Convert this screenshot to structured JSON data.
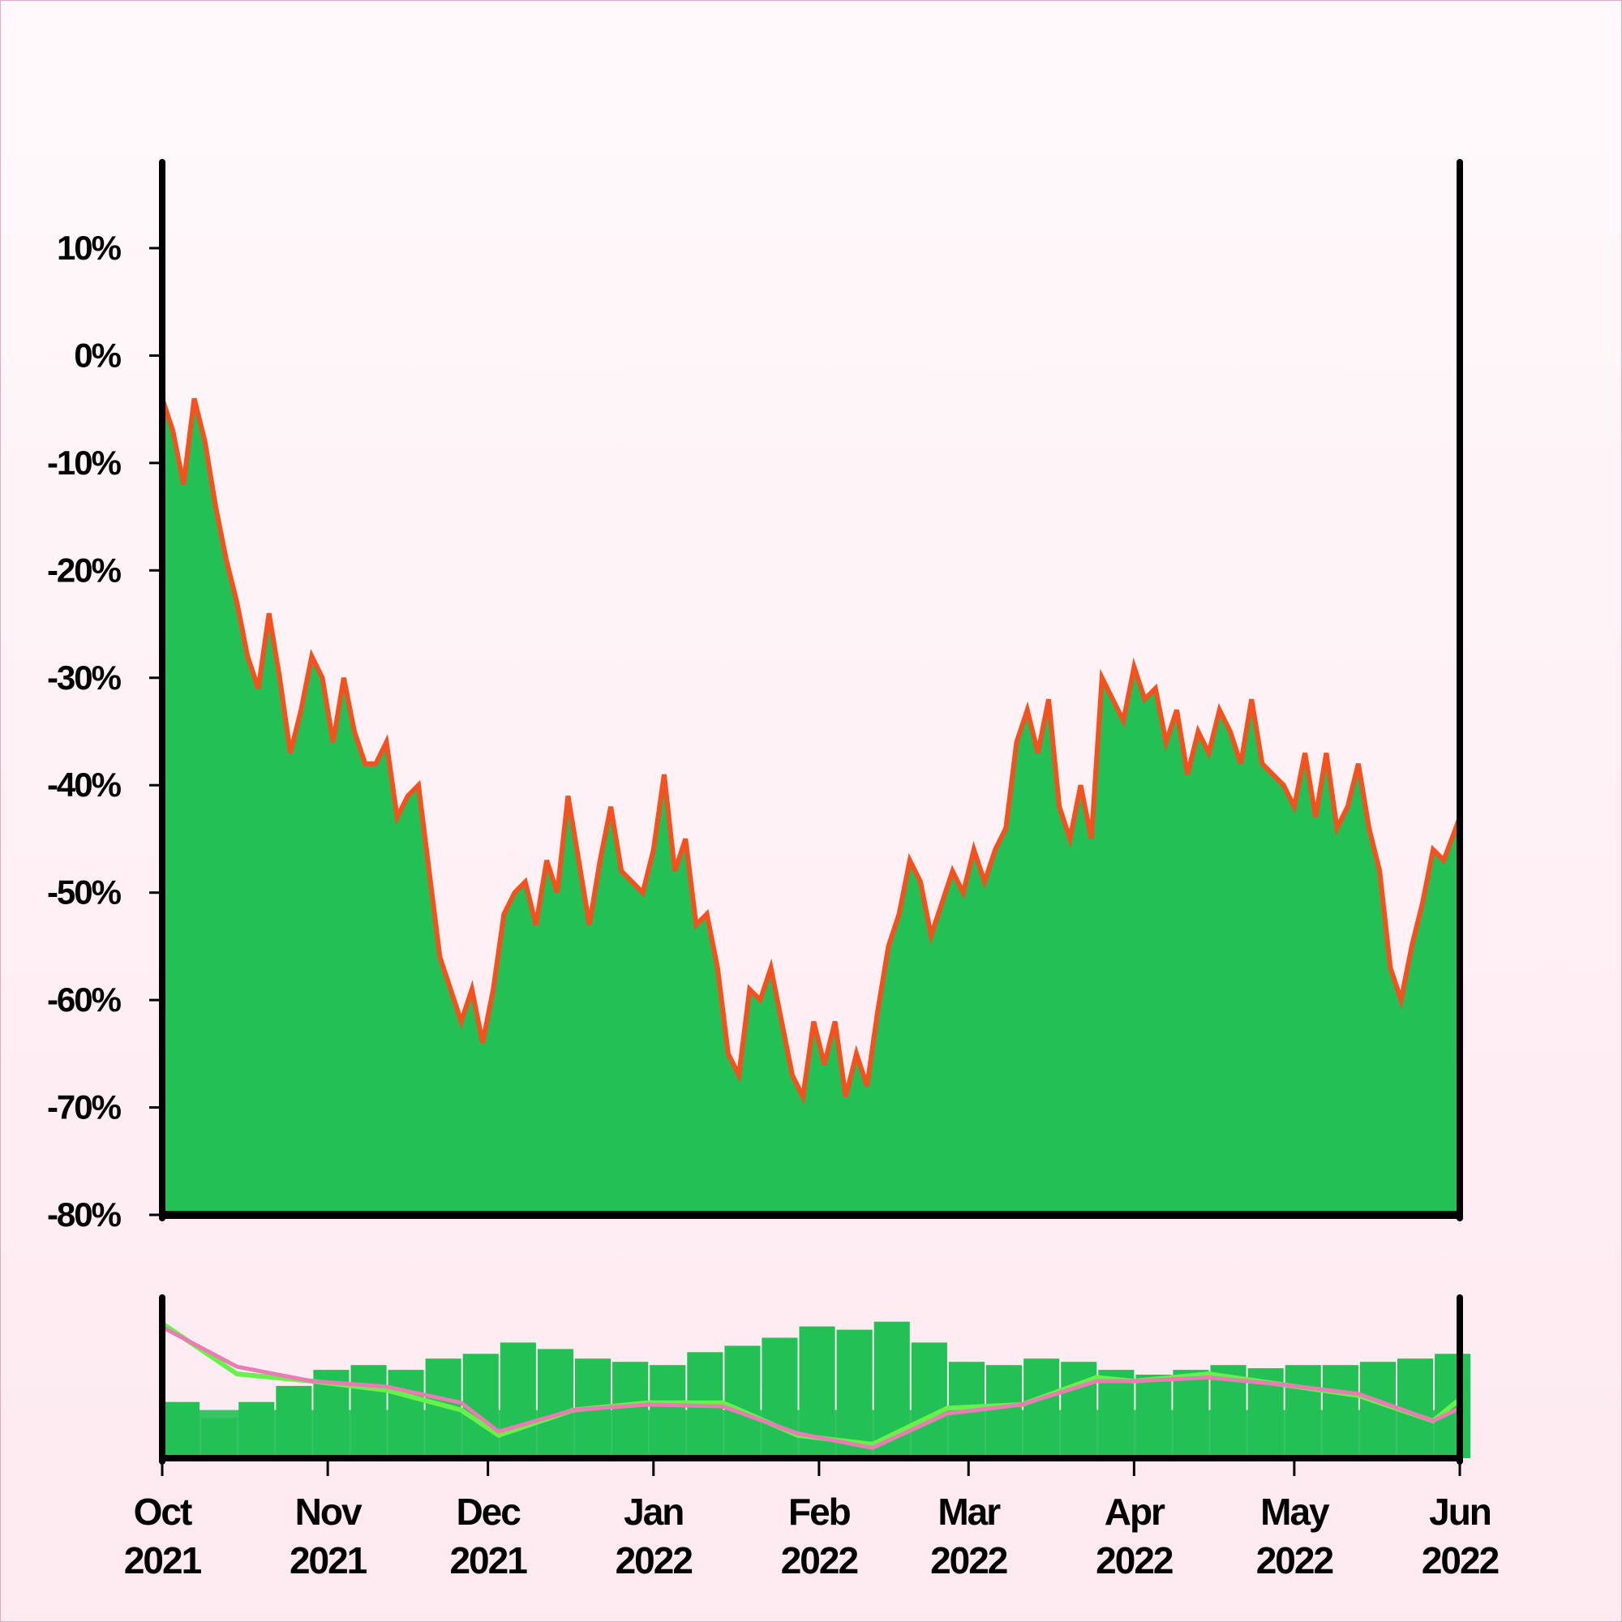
{
  "colors": {
    "area_fill": "#22c055",
    "price_line": "#f4511e",
    "volume_bar": "#22c055",
    "ma_fast": "#66f24a",
    "ma_slow": "#ea7bb5",
    "axis": "#000000"
  },
  "chart_data": [
    {
      "type": "area",
      "title": "",
      "xlabel": "",
      "ylabel": "",
      "ylim": [
        -80,
        18
      ],
      "y_ticks": [
        "10%",
        "0%",
        "-10%",
        "-20%",
        "-30%",
        "-40%",
        "-50%",
        "-60%",
        "-70%",
        "-80%"
      ],
      "y_tick_values": [
        10,
        0,
        -10,
        -20,
        -30,
        -40,
        -50,
        -60,
        -70,
        -80
      ],
      "x_range": [
        "2021-10-01",
        "2022-06-01"
      ],
      "series": [
        {
          "type": "area",
          "x": [
            "2021-10-01",
            "2021-10-03",
            "2021-10-05",
            "2021-10-07",
            "2021-10-09",
            "2021-10-11",
            "2021-10-13",
            "2021-10-15",
            "2021-10-17",
            "2021-10-19",
            "2021-10-21",
            "2021-10-23",
            "2021-10-25",
            "2021-10-27",
            "2021-10-29",
            "2021-10-31",
            "2021-11-02",
            "2021-11-04",
            "2021-11-06",
            "2021-11-08",
            "2021-11-10",
            "2021-11-12",
            "2021-11-14",
            "2021-11-16",
            "2021-11-18",
            "2021-11-20",
            "2021-11-22",
            "2021-11-24",
            "2021-11-26",
            "2021-11-28",
            "2021-11-30",
            "2021-12-02",
            "2021-12-04",
            "2021-12-06",
            "2021-12-08",
            "2021-12-10",
            "2021-12-12",
            "2021-12-14",
            "2021-12-16",
            "2021-12-18",
            "2021-12-20",
            "2021-12-22",
            "2021-12-24",
            "2021-12-26",
            "2021-12-28",
            "2021-12-30",
            "2022-01-01",
            "2022-01-03",
            "2022-01-05",
            "2022-01-07",
            "2022-01-09",
            "2022-01-11",
            "2022-01-13",
            "2022-01-15",
            "2022-01-17",
            "2022-01-19",
            "2022-01-21",
            "2022-01-23",
            "2022-01-25",
            "2022-01-27",
            "2022-01-29",
            "2022-01-31",
            "2022-02-02",
            "2022-02-04",
            "2022-02-06",
            "2022-02-08",
            "2022-02-10",
            "2022-02-12",
            "2022-02-14",
            "2022-02-16",
            "2022-02-18",
            "2022-02-20",
            "2022-02-22",
            "2022-02-24",
            "2022-02-26",
            "2022-02-28",
            "2022-03-02",
            "2022-03-04",
            "2022-03-06",
            "2022-03-08",
            "2022-03-10",
            "2022-03-12",
            "2022-03-14",
            "2022-03-16",
            "2022-03-18",
            "2022-03-20",
            "2022-03-22",
            "2022-03-24",
            "2022-03-26",
            "2022-03-28",
            "2022-03-30",
            "2022-04-01",
            "2022-04-03",
            "2022-04-05",
            "2022-04-07",
            "2022-04-09",
            "2022-04-11",
            "2022-04-13",
            "2022-04-15",
            "2022-04-17",
            "2022-04-19",
            "2022-04-21",
            "2022-04-23",
            "2022-04-25",
            "2022-04-27",
            "2022-04-29",
            "2022-05-01",
            "2022-05-03",
            "2022-05-05",
            "2022-05-07",
            "2022-05-09",
            "2022-05-11",
            "2022-05-13",
            "2022-05-15",
            "2022-05-17",
            "2022-05-19",
            "2022-05-21",
            "2022-05-23",
            "2022-05-25",
            "2022-05-27",
            "2022-05-29",
            "2022-06-01"
          ],
          "y": [
            -4,
            -7,
            -12,
            -4,
            -8,
            -14,
            -19,
            -23,
            -28,
            -31,
            -24,
            -30,
            -37,
            -33,
            -28,
            -30,
            -36,
            -30,
            -35,
            -38,
            -38,
            -36,
            -43,
            -41,
            -40,
            -48,
            -56,
            -59,
            -62,
            -59,
            -64,
            -59,
            -52,
            -50,
            -49,
            -53,
            -47,
            -50,
            -41,
            -47,
            -53,
            -47,
            -42,
            -48,
            -49,
            -50,
            -46,
            -39,
            -48,
            -45,
            -53,
            -52,
            -57,
            -65,
            -67,
            -59,
            -60,
            -57,
            -62,
            -67,
            -69,
            -62,
            -66,
            -62,
            -69,
            -65,
            -68,
            -61,
            -55,
            -52,
            -47,
            -49,
            -54,
            -51,
            -48,
            -50,
            -46,
            -49,
            -46,
            -44,
            -36,
            -33,
            -37,
            -32,
            -42,
            -45,
            -40,
            -45,
            -30,
            -32,
            -34,
            -29,
            -32,
            -31,
            -36,
            -33,
            -39,
            -35,
            -37,
            -33,
            -35,
            -38,
            -32,
            -38,
            -39,
            -40,
            -42,
            -37,
            -43,
            -37,
            -44,
            -42,
            -38,
            -44,
            -48,
            -57,
            -60,
            -55,
            -51,
            -46,
            -47,
            -43
          ]
        },
        {
          "type": "bar",
          "name": "",
          "x": [
            "2021-10-01",
            "2021-10-08",
            "2021-10-15",
            "2021-10-22",
            "2021-10-29",
            "2021-11-05",
            "2021-11-12",
            "2021-11-19",
            "2021-11-26",
            "2021-12-03",
            "2021-12-10",
            "2021-12-17",
            "2021-12-24",
            "2021-12-31",
            "2022-01-07",
            "2022-01-14",
            "2022-01-21",
            "2022-01-28",
            "2022-02-04",
            "2022-02-11",
            "2022-02-18",
            "2022-02-25",
            "2022-03-04",
            "2022-03-11",
            "2022-03-18",
            "2022-03-25",
            "2022-04-01",
            "2022-04-08",
            "2022-04-15",
            "2022-04-22",
            "2022-04-29",
            "2022-05-06",
            "2022-05-13",
            "2022-05-20",
            "2022-05-27"
          ],
          "values": [
            0.35,
            0.25,
            0.35,
            0.45,
            0.55,
            0.58,
            0.55,
            0.62,
            0.65,
            0.72,
            0.68,
            0.62,
            0.6,
            0.58,
            0.66,
            0.7,
            0.75,
            0.82,
            0.8,
            0.85,
            0.72,
            0.6,
            0.58,
            0.62,
            0.6,
            0.55,
            0.52,
            0.55,
            0.58,
            0.56,
            0.58,
            0.58,
            0.6,
            0.62,
            0.65
          ]
        },
        {
          "type": "line",
          "name": "",
          "x": [
            "2021-10-01",
            "2021-10-15",
            "2021-10-29",
            "2021-11-12",
            "2021-11-26",
            "2021-12-03",
            "2021-12-17",
            "2021-12-31",
            "2022-01-14",
            "2022-01-28",
            "2022-02-11",
            "2022-02-25",
            "2022-03-11",
            "2022-03-25",
            "2022-04-01",
            "2022-04-15",
            "2022-04-29",
            "2022-05-13",
            "2022-05-27",
            "2022-06-01"
          ],
          "values": [
            0.62,
            0.34,
            0.3,
            0.25,
            0.14,
            0.0,
            0.14,
            0.18,
            0.18,
            0.0,
            -0.05,
            0.15,
            0.17,
            0.32,
            0.3,
            0.34,
            0.28,
            0.22,
            0.08,
            0.2
          ]
        },
        {
          "type": "line",
          "name": "",
          "x": [
            "2021-10-01",
            "2021-10-15",
            "2021-10-29",
            "2021-11-12",
            "2021-11-26",
            "2021-12-03",
            "2021-12-17",
            "2021-12-31",
            "2022-01-14",
            "2022-01-28",
            "2022-02-11",
            "2022-02-25",
            "2022-03-11",
            "2022-03-25",
            "2022-04-01",
            "2022-04-15",
            "2022-04-29",
            "2022-05-13",
            "2022-05-27",
            "2022-06-01"
          ],
          "values": [
            0.6,
            0.38,
            0.3,
            0.27,
            0.18,
            0.02,
            0.14,
            0.17,
            0.16,
            0.01,
            -0.07,
            0.12,
            0.17,
            0.3,
            0.3,
            0.32,
            0.28,
            0.23,
            0.08,
            0.15
          ]
        }
      ],
      "x_ticks": [
        {
          "month": "Oct",
          "year": "2021"
        },
        {
          "month": "Nov",
          "year": "2021"
        },
        {
          "month": "Dec",
          "year": "2021"
        },
        {
          "month": "Jan",
          "year": "2022"
        },
        {
          "month": "Feb",
          "year": "2022"
        },
        {
          "month": "Mar",
          "year": "2022"
        },
        {
          "month": "Apr",
          "year": "2022"
        },
        {
          "month": "May",
          "year": "2022"
        },
        {
          "month": "Jun",
          "year": "2022"
        }
      ],
      "x_tick_dates": [
        "2021-10-01",
        "2021-11-01",
        "2021-12-01",
        "2022-01-01",
        "2022-02-01",
        "2022-03-01",
        "2022-04-01",
        "2022-05-01",
        "2022-06-01"
      ],
      "grid": false,
      "legend": "none"
    }
  ]
}
